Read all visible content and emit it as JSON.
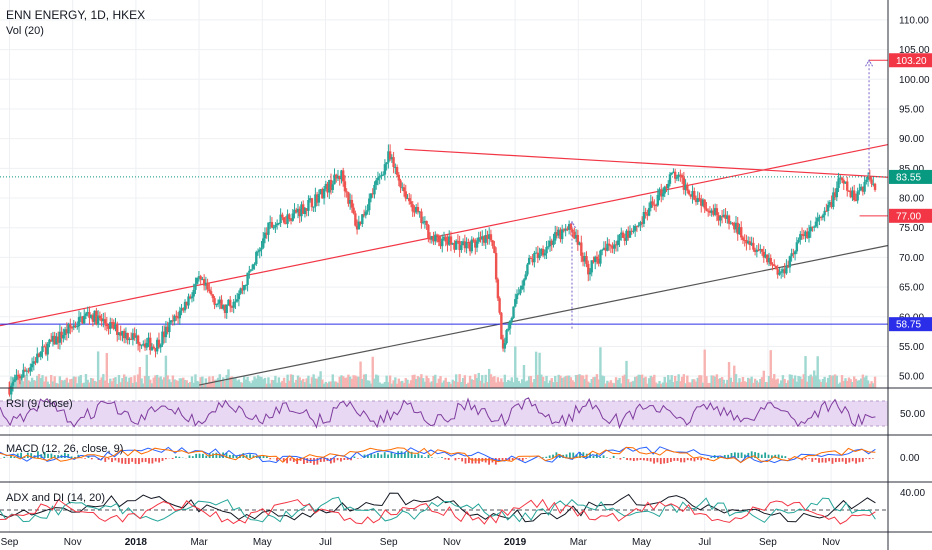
{
  "header": {
    "symbol_title": "ENN ENERGY, 1D, HKEX",
    "volume_label": "Vol (20)"
  },
  "indicators": {
    "rsi": {
      "label": "RSI (9, close)",
      "axis_tick": "50.00"
    },
    "macd": {
      "label": "MACD (12, 26, close, 9)",
      "axis_tick": "0.00"
    },
    "adx": {
      "label": "ADX and DI (14, 20)",
      "axis_tick": "40.00"
    }
  },
  "price_axis": {
    "ticks": [
      "110.00",
      "105.00",
      "100.00",
      "95.00",
      "90.00",
      "85.00",
      "80.00",
      "75.00",
      "70.00",
      "65.00",
      "60.00",
      "55.00",
      "50.00"
    ],
    "tick_values": [
      110,
      105,
      100,
      95,
      90,
      85,
      80,
      75,
      70,
      65,
      60,
      55,
      50
    ],
    "range": [
      48,
      112
    ]
  },
  "price_tags": [
    {
      "label": "103.20",
      "value": 103.2,
      "color": "#f23645"
    },
    {
      "label": "83.55",
      "value": 83.55,
      "color": "#089981"
    },
    {
      "label": "77.00",
      "value": 77.0,
      "color": "#f23645"
    },
    {
      "label": "58.75",
      "value": 58.75,
      "color": "#2a2ee8"
    }
  ],
  "time_axis": {
    "labels": [
      {
        "text": "Sep",
        "bold": false
      },
      {
        "text": "Nov",
        "bold": false
      },
      {
        "text": "2018",
        "bold": true
      },
      {
        "text": "Mar",
        "bold": false
      },
      {
        "text": "May",
        "bold": false
      },
      {
        "text": "Jul",
        "bold": false
      },
      {
        "text": "Sep",
        "bold": false
      },
      {
        "text": "Nov",
        "bold": false
      },
      {
        "text": "2019",
        "bold": true
      },
      {
        "text": "Mar",
        "bold": false
      },
      {
        "text": "May",
        "bold": false
      },
      {
        "text": "Jul",
        "bold": false
      },
      {
        "text": "Sep",
        "bold": false
      },
      {
        "text": "Nov",
        "bold": false
      }
    ],
    "month_index": [
      0,
      2,
      4,
      6,
      8,
      10,
      12,
      14,
      16,
      18,
      20,
      22,
      24,
      26
    ]
  },
  "chart_data": {
    "type": "candlestick",
    "title": "ENN ENERGY, 1D, HKEX",
    "x_unit": "months since Sep 2017",
    "xlim": [
      -0.3,
      27.8
    ],
    "ylim": [
      48,
      112
    ],
    "price_path": [
      [
        0,
        48
      ],
      [
        1.2,
        55
      ],
      [
        2.5,
        60.5
      ],
      [
        3.5,
        57.5
      ],
      [
        4.6,
        55
      ],
      [
        5.3,
        60
      ],
      [
        6.0,
        66
      ],
      [
        6.8,
        61
      ],
      [
        7.4,
        65
      ],
      [
        8.2,
        75
      ],
      [
        9.5,
        79
      ],
      [
        10.5,
        84
      ],
      [
        11.0,
        75
      ],
      [
        12.0,
        87
      ],
      [
        12.6,
        80
      ],
      [
        13.4,
        73
      ],
      [
        14.5,
        72
      ],
      [
        15.3,
        73
      ],
      [
        15.6,
        55
      ],
      [
        16.4,
        69
      ],
      [
        17.2,
        73
      ],
      [
        17.8,
        75
      ],
      [
        18.3,
        68
      ],
      [
        19.0,
        72
      ],
      [
        20.0,
        76
      ],
      [
        21.0,
        84
      ],
      [
        21.8,
        80
      ],
      [
        22.5,
        77
      ],
      [
        23.2,
        74
      ],
      [
        24.0,
        70
      ],
      [
        24.4,
        67
      ],
      [
        25.0,
        73
      ],
      [
        25.8,
        77
      ],
      [
        26.3,
        83
      ],
      [
        26.7,
        80
      ],
      [
        27.2,
        83.5
      ],
      [
        27.4,
        82
      ]
    ],
    "trendlines": [
      {
        "name": "upper-resistance",
        "color": "#f23645",
        "points": [
          [
            12.5,
            88.2
          ],
          [
            27.8,
            83.5
          ]
        ]
      },
      {
        "name": "rising-channel",
        "color": "#f23645",
        "points": [
          [
            -0.3,
            58.5
          ],
          [
            27.8,
            89
          ]
        ]
      },
      {
        "name": "lower-support",
        "color": "#555555",
        "points": [
          [
            6.0,
            48.5
          ],
          [
            27.8,
            72
          ]
        ]
      }
    ],
    "horizontal_levels": [
      {
        "value": 83.55,
        "color": "#089981",
        "style": "dotted"
      },
      {
        "value": 58.75,
        "color": "#2a2ee8",
        "style": "solid"
      },
      {
        "value": 77.0,
        "color": "#f23645",
        "style": "solid",
        "from_x": 26.9
      },
      {
        "value": 103.2,
        "color": "#f23645",
        "style": "solid",
        "from_x": 27.2
      }
    ],
    "projection": {
      "x": 27.2,
      "from": 84.0,
      "to": 103.2,
      "color": "#7b61c9"
    },
    "earlier_projection": {
      "x": 17.8,
      "from": 58.0,
      "to": 76.0,
      "color": "#7b61c9"
    }
  },
  "colors": {
    "up": "#26a69a",
    "down": "#ef5350",
    "rsi_line": "#7e3c9e",
    "rsi_band": "#e9d8f3",
    "macd_line": "#2962ff",
    "macd_signal": "#ff6d00",
    "adx": "#131722",
    "di_plus": "#26a69a",
    "di_minus": "#f23645"
  }
}
